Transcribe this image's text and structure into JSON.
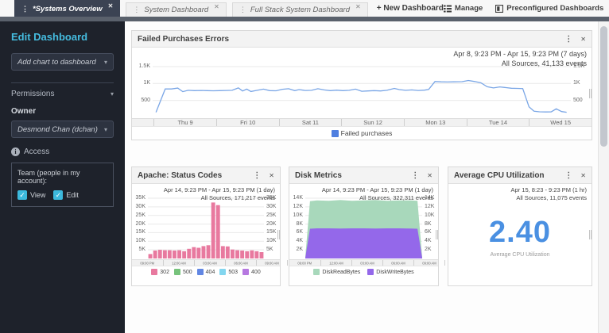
{
  "tabbar": {
    "tabs": [
      {
        "label": "*Systems Overview",
        "active": true
      },
      {
        "label": "System Dashboard",
        "active": false
      },
      {
        "label": "Full Stack System Dashboard",
        "active": false
      }
    ],
    "new_dashboard": "+ New Dashboard",
    "manage": "Manage",
    "preconfigured": "Preconfigured Dashboards"
  },
  "sidebar": {
    "title": "Edit Dashboard",
    "add_chart_dropdown": "Add chart to dashboard",
    "permissions": "Permissions",
    "owner_label": "Owner",
    "owner_value": "Desmond Chan (dchan)",
    "access_label": "Access",
    "team_label": "Team (people in my account):",
    "checkboxes": [
      {
        "label": "View",
        "checked": true
      },
      {
        "label": "Edit",
        "checked": true
      }
    ]
  },
  "panels": {
    "failed": {
      "title": "Failed Purchases Errors",
      "range": "Apr 8, 9:23 PM - Apr 15, 9:23 PM  (7 days)",
      "sources": "All Sources, 41,133 events"
    },
    "apache": {
      "title": "Apache: Status Codes",
      "range": "Apr 14, 9:23 PM - Apr 15, 9:23 PM  (1 day)",
      "sources": "All Sources, 171,217 events"
    },
    "disk": {
      "title": "Disk Metrics",
      "range": "Apr 14, 9:23 PM - Apr 15, 9:23 PM  (1 day)",
      "sources": "All Sources, 322,311 events"
    },
    "cpu": {
      "title": "Average CPU Utilization",
      "range": "Apr 15, 8:23 - 9:23 PM  (1 hr)",
      "sources": "All Sources, 11,075 events",
      "value": "2.40",
      "caption": "Average CPU Utilization"
    }
  },
  "chart_data": [
    {
      "id": "failed",
      "type": "line",
      "title": "Failed Purchases Errors",
      "xlabel": "",
      "ylabel": "",
      "ylim": [
        0,
        1500
      ],
      "grid": true,
      "legend_position": "bottom",
      "top_pad": 4,
      "yticks": [
        {
          "v": 500,
          "label": "500"
        },
        {
          "v": 1000,
          "label": "1K"
        },
        {
          "v": 1500,
          "label": "1.5K"
        }
      ],
      "xticklabels": [
        "Thu 9",
        "Fri 10",
        "Sat 11",
        "Sun 12",
        "Mon 13",
        "Tue 14",
        "Wed 15"
      ],
      "lead_cell": true,
      "series": [
        {
          "name": "Failed purchases",
          "color": "#7aa6e6",
          "points": [
            [
              0.008,
              150
            ],
            [
              0.03,
              840
            ],
            [
              0.045,
              840
            ],
            [
              0.06,
              865
            ],
            [
              0.072,
              760
            ],
            [
              0.085,
              800
            ],
            [
              0.1,
              790
            ],
            [
              0.115,
              795
            ],
            [
              0.13,
              790
            ],
            [
              0.145,
              785
            ],
            [
              0.16,
              790
            ],
            [
              0.175,
              795
            ],
            [
              0.19,
              800
            ],
            [
              0.205,
              870
            ],
            [
              0.215,
              780
            ],
            [
              0.225,
              835
            ],
            [
              0.235,
              765
            ],
            [
              0.25,
              800
            ],
            [
              0.265,
              835
            ],
            [
              0.28,
              790
            ],
            [
              0.295,
              785
            ],
            [
              0.31,
              830
            ],
            [
              0.325,
              845
            ],
            [
              0.34,
              790
            ],
            [
              0.35,
              820
            ],
            [
              0.365,
              795
            ],
            [
              0.38,
              800
            ],
            [
              0.395,
              845
            ],
            [
              0.41,
              810
            ],
            [
              0.425,
              790
            ],
            [
              0.44,
              805
            ],
            [
              0.455,
              790
            ],
            [
              0.47,
              800
            ],
            [
              0.485,
              835
            ],
            [
              0.5,
              770
            ],
            [
              0.515,
              780
            ],
            [
              0.53,
              790
            ],
            [
              0.545,
              780
            ],
            [
              0.56,
              800
            ],
            [
              0.578,
              855
            ],
            [
              0.59,
              820
            ],
            [
              0.605,
              800
            ],
            [
              0.62,
              810
            ],
            [
              0.635,
              795
            ],
            [
              0.65,
              805
            ],
            [
              0.66,
              825
            ],
            [
              0.675,
              1060
            ],
            [
              0.69,
              1050
            ],
            [
              0.705,
              1045
            ],
            [
              0.72,
              1050
            ],
            [
              0.74,
              1055
            ],
            [
              0.755,
              1090
            ],
            [
              0.77,
              1060
            ],
            [
              0.785,
              1020
            ],
            [
              0.8,
              905
            ],
            [
              0.815,
              870
            ],
            [
              0.83,
              900
            ],
            [
              0.845,
              880
            ],
            [
              0.858,
              860
            ],
            [
              0.872,
              855
            ],
            [
              0.885,
              850
            ],
            [
              0.9,
              310
            ],
            [
              0.912,
              180
            ],
            [
              0.925,
              165
            ],
            [
              0.94,
              160
            ],
            [
              0.953,
              162
            ],
            [
              0.965,
              250
            ],
            [
              0.978,
              170
            ],
            [
              0.99,
              150
            ]
          ]
        }
      ],
      "legend": [
        {
          "label": "Failed purchases",
          "color": "#4f7fe0"
        }
      ]
    },
    {
      "id": "apache",
      "type": "bar",
      "title": "Apache: Status Codes",
      "xlabel": "",
      "ylabel": "",
      "ylim": [
        0,
        35000
      ],
      "grid": true,
      "legend_position": "bottom",
      "top_pad": 4,
      "bar_color": "#e8799f",
      "yticks": [
        {
          "v": 5000,
          "label": "5K"
        },
        {
          "v": 10000,
          "label": "10K"
        },
        {
          "v": 15000,
          "label": "15K"
        },
        {
          "v": 20000,
          "label": "20K"
        },
        {
          "v": 25000,
          "label": "25K"
        },
        {
          "v": 30000,
          "label": "30K"
        },
        {
          "v": 35000,
          "label": "35K"
        }
      ],
      "xticklabels": [
        "09:00 PM",
        "12:00 AM",
        "03:00 AM",
        "06:00 AM",
        "09:00 AM",
        "12:00 PM",
        "03:00 PM",
        "06:00 PM",
        "09:00 PM"
      ],
      "values": [
        2600,
        4600,
        5000,
        4800,
        4800,
        4600,
        4800,
        4200,
        5600,
        6600,
        6200,
        7200,
        7700,
        32500,
        31000,
        7200,
        7000,
        5200,
        4800,
        4600,
        4200,
        4700,
        4200,
        3700
      ],
      "legend": [
        {
          "label": "302",
          "color": "#e8799f"
        },
        {
          "label": "500",
          "color": "#77c37c"
        },
        {
          "label": "404",
          "color": "#6287e3"
        },
        {
          "label": "503",
          "color": "#83d6ef"
        },
        {
          "label": "400",
          "color": "#b678e0"
        }
      ]
    },
    {
      "id": "disk",
      "type": "area",
      "title": "Disk Metrics",
      "xlabel": "",
      "ylabel": "",
      "ylim": [
        0,
        14000
      ],
      "grid": true,
      "legend_position": "bottom",
      "top_pad": 4,
      "yticks": [
        {
          "v": 2000,
          "label": "2K"
        },
        {
          "v": 4000,
          "label": "4K"
        },
        {
          "v": 6000,
          "label": "6K"
        },
        {
          "v": 8000,
          "label": "8K"
        },
        {
          "v": 10000,
          "label": "10K"
        },
        {
          "v": 12000,
          "label": "12K"
        },
        {
          "v": 14000,
          "label": "14K"
        }
      ],
      "xticklabels": [
        "09:00 PM",
        "12:00 AM",
        "03:00 AM",
        "06:00 AM",
        "09:00 AM",
        "12:00 PM",
        "03:00 PM",
        "06:00 PM",
        "09:00 PM"
      ],
      "series": [
        {
          "name": "DiskReadBytes",
          "color": "#a8d8bb",
          "points": [
            [
              0,
              300
            ],
            [
              0.04,
              13300
            ],
            [
              0.1,
              13500
            ],
            [
              0.2,
              13400
            ],
            [
              0.3,
              13600
            ],
            [
              0.4,
              13400
            ],
            [
              0.5,
              13500
            ],
            [
              0.6,
              13600
            ],
            [
              0.7,
              13400
            ],
            [
              0.8,
              13500
            ],
            [
              0.9,
              13500
            ],
            [
              0.96,
              13400
            ],
            [
              1,
              300
            ]
          ]
        },
        {
          "name": "DiskWriteBytes",
          "color": "#9468ea",
          "points": [
            [
              0,
              150
            ],
            [
              0.04,
              6900
            ],
            [
              0.1,
              7000
            ],
            [
              0.2,
              7000
            ],
            [
              0.3,
              6950
            ],
            [
              0.4,
              7000
            ],
            [
              0.5,
              7000
            ],
            [
              0.6,
              6950
            ],
            [
              0.7,
              7000
            ],
            [
              0.8,
              7000
            ],
            [
              0.9,
              6950
            ],
            [
              0.96,
              6900
            ],
            [
              1,
              150
            ]
          ]
        }
      ],
      "legend": [
        {
          "label": "DiskReadBytes",
          "color": "#a8d8bb"
        },
        {
          "label": "DiskWriteBytes",
          "color": "#9468ea"
        }
      ]
    }
  ]
}
